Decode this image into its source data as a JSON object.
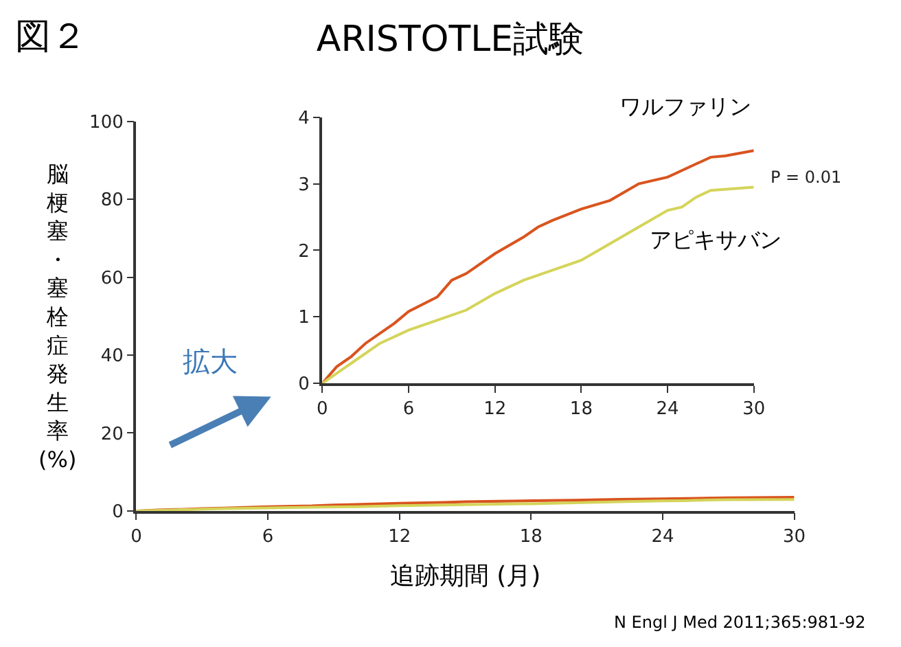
{
  "chart_data": [
    {
      "type": "line",
      "title": "ARISTOTLE試験",
      "xlabel": "追跡期間 (月)",
      "ylabel": "脳梗塞・塞栓症発生率 (%)",
      "annotations": [
        "図２",
        "拡大",
        "N Engl J Med 2011;365:981-92"
      ],
      "xlim": [
        0,
        30
      ],
      "xticks": [
        0,
        6,
        12,
        18,
        24,
        30
      ],
      "ylim": [
        0,
        100
      ],
      "yticks": [
        0,
        20,
        40,
        60,
        80,
        100
      ],
      "line_style": "solid",
      "series": [
        {
          "color": "#d9541e",
          "x": [
            0,
            1,
            2,
            3,
            4,
            5,
            6,
            8,
            9,
            10,
            12,
            14,
            15,
            16,
            18,
            20,
            22,
            24,
            26,
            27,
            28,
            30
          ],
          "values": [
            0,
            0.25,
            0.4,
            0.6,
            0.75,
            0.9,
            1.08,
            1.3,
            1.55,
            1.65,
            1.95,
            2.2,
            2.35,
            2.45,
            2.62,
            2.75,
            3.0,
            3.1,
            3.3,
            3.4,
            3.42,
            3.5
          ]
        },
        {
          "color": "#d4d45a",
          "x": [
            0,
            2,
            4,
            6,
            8,
            10,
            12,
            14,
            16,
            18,
            20,
            22,
            24,
            25,
            26,
            27,
            30
          ],
          "values": [
            0,
            0.3,
            0.6,
            0.8,
            0.95,
            1.1,
            1.35,
            1.55,
            1.7,
            1.85,
            2.1,
            2.35,
            2.6,
            2.65,
            2.8,
            2.9,
            2.95
          ]
        }
      ]
    },
    {
      "type": "line",
      "annotations": [
        "P = 0.01"
      ],
      "xlim": [
        0,
        30
      ],
      "xticks": [
        0,
        6,
        12,
        18,
        24,
        30
      ],
      "ylim": [
        0,
        4
      ],
      "yticks": [
        0,
        1,
        2,
        3,
        4
      ],
      "line_style": "solid",
      "series": [
        {
          "name": "ワルファリン",
          "color": "#d9541e",
          "x": [
            0,
            1,
            2,
            3,
            4,
            5,
            6,
            8,
            9,
            10,
            12,
            14,
            15,
            16,
            18,
            20,
            22,
            24,
            26,
            27,
            28,
            30
          ],
          "values": [
            0,
            0.25,
            0.4,
            0.6,
            0.75,
            0.9,
            1.08,
            1.3,
            1.55,
            1.65,
            1.95,
            2.2,
            2.35,
            2.45,
            2.62,
            2.75,
            3.0,
            3.1,
            3.3,
            3.4,
            3.42,
            3.5
          ]
        },
        {
          "name": "アピキサバン",
          "color": "#d4d45a",
          "x": [
            0,
            2,
            4,
            6,
            8,
            10,
            12,
            14,
            16,
            18,
            20,
            22,
            24,
            25,
            26,
            27,
            30
          ],
          "values": [
            0,
            0.3,
            0.6,
            0.8,
            0.95,
            1.1,
            1.35,
            1.55,
            1.7,
            1.85,
            2.1,
            2.35,
            2.6,
            2.65,
            2.8,
            2.9,
            2.95
          ]
        }
      ]
    }
  ]
}
